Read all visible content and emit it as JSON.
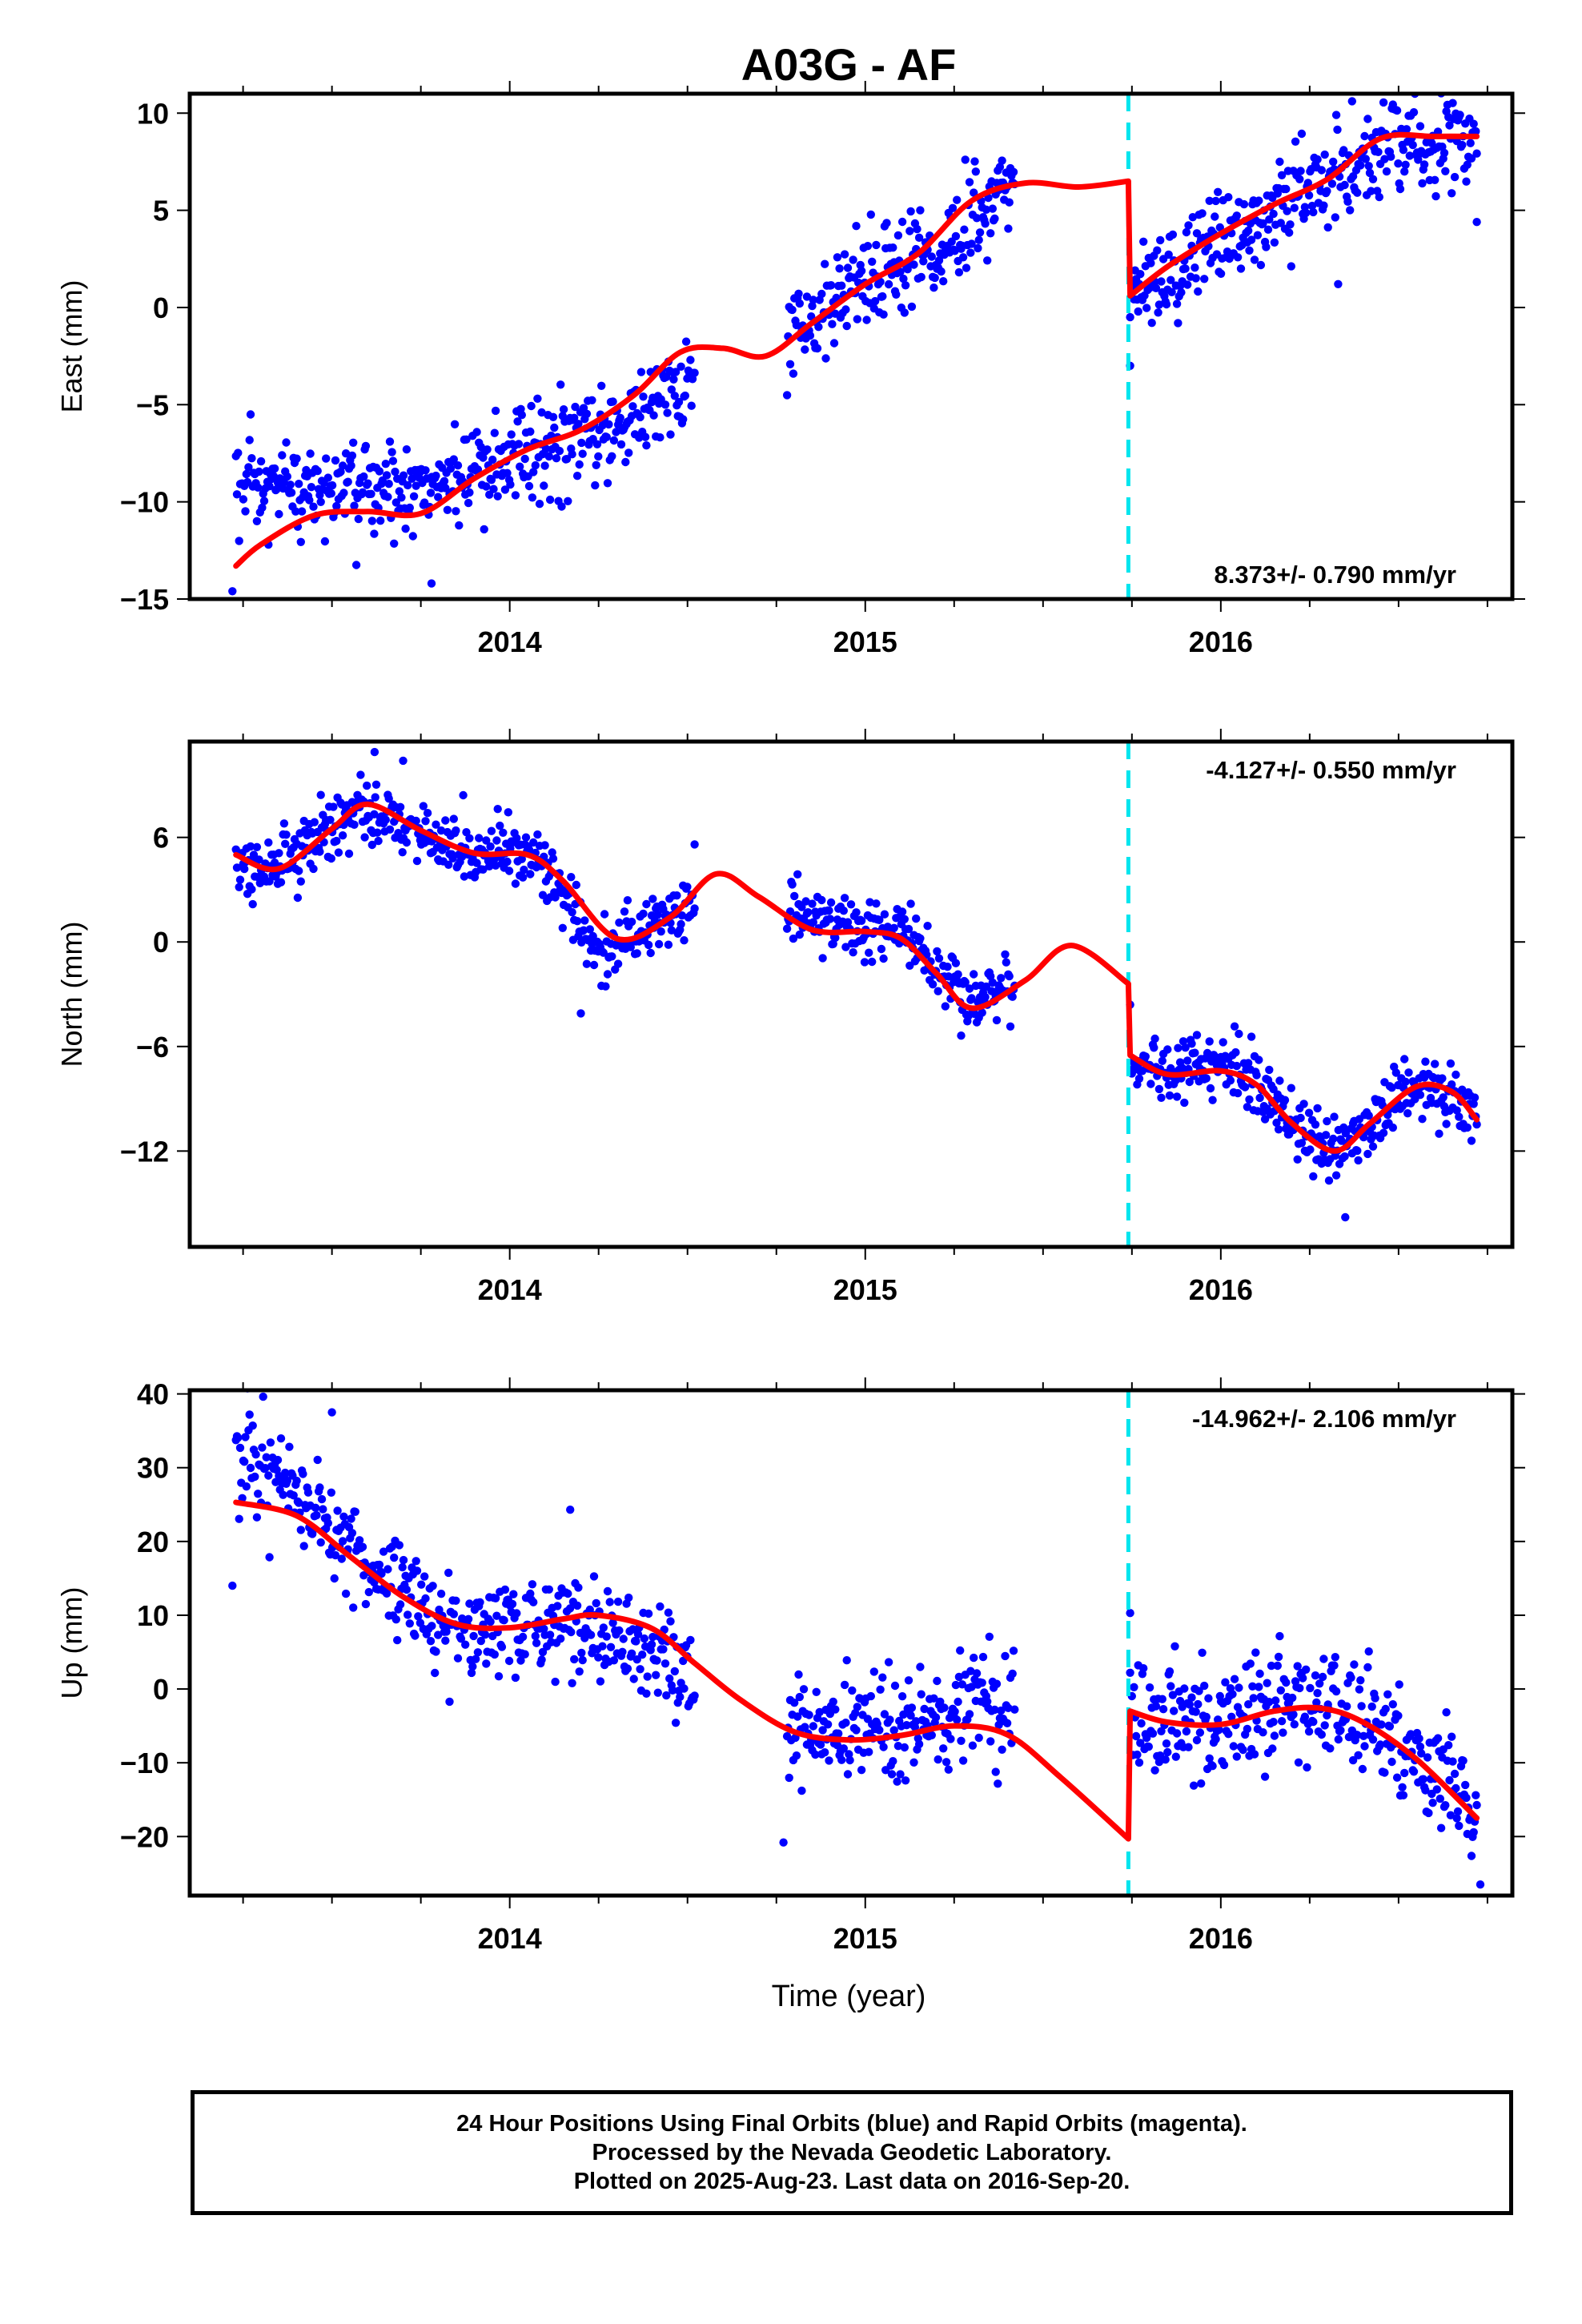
{
  "title": "A03G - AF",
  "xlabel": "Time (year)",
  "footer": {
    "line1": "24 Hour Positions Using Final Orbits (blue) and Rapid Orbits (magenta).",
    "line2": "Processed by the Nevada Geodetic Laboratory.",
    "line3": "Plotted on 2025-Aug-23. Last data on 2016-Sep-20."
  },
  "colors": {
    "data": "#0000ff",
    "model": "#ff0000",
    "offset": "#00e5ee"
  },
  "chart_data": [
    {
      "type": "scatter",
      "ylabel": "East (mm)",
      "rate": "8.373+/- 0.790 mm/yr",
      "xlim": [
        2013.1,
        2016.82
      ],
      "ylim": [
        -15,
        11
      ],
      "yticks": [
        10,
        5,
        0,
        -5,
        -10,
        -15
      ],
      "xticks": [
        2014,
        2015,
        2016
      ],
      "offset_epoch": 2015.74,
      "data_segments": [
        [
          2013.23,
          2014.52
        ],
        [
          2014.78,
          2015.42
        ],
        [
          2015.75,
          2016.72
        ]
      ],
      "model": [
        [
          2013.23,
          -13.3
        ],
        [
          2013.3,
          -12.2
        ],
        [
          2013.45,
          -10.7
        ],
        [
          2013.6,
          -10.5
        ],
        [
          2013.75,
          -10.6
        ],
        [
          2013.9,
          -8.8
        ],
        [
          2014.05,
          -7.3
        ],
        [
          2014.2,
          -6.3
        ],
        [
          2014.35,
          -4.5
        ],
        [
          2014.48,
          -2.3
        ],
        [
          2014.6,
          -2.1
        ],
        [
          2014.72,
          -2.5
        ],
        [
          2014.85,
          -0.8
        ],
        [
          2015.0,
          1.2
        ],
        [
          2015.15,
          2.8
        ],
        [
          2015.3,
          5.5
        ],
        [
          2015.45,
          6.4
        ],
        [
          2015.6,
          6.2
        ],
        [
          2015.74,
          6.5
        ],
        [
          2015.745,
          0.6
        ],
        [
          2015.85,
          2.1
        ],
        [
          2016.0,
          3.8
        ],
        [
          2016.15,
          5.3
        ],
        [
          2016.3,
          6.6
        ],
        [
          2016.45,
          8.7
        ],
        [
          2016.6,
          8.8
        ],
        [
          2016.72,
          8.8
        ]
      ],
      "data_trend": [
        [
          2013.23,
          -9.5
        ],
        [
          2013.6,
          -9.4
        ],
        [
          2013.9,
          -8.7
        ],
        [
          2014.2,
          -6.8
        ],
        [
          2014.52,
          -4.0
        ],
        [
          2014.78,
          -1.5
        ],
        [
          2015.0,
          1.8
        ],
        [
          2015.2,
          2.8
        ],
        [
          2015.42,
          6.0
        ],
        [
          2015.75,
          1.2
        ],
        [
          2016.0,
          3.4
        ],
        [
          2016.3,
          6.6
        ],
        [
          2016.5,
          8.3
        ],
        [
          2016.72,
          8.5
        ]
      ],
      "noise": 1.3,
      "outliers": [
        [
          2015.745,
          -3.0
        ],
        [
          2015.745,
          -0.5
        ],
        [
          2013.22,
          -14.6
        ],
        [
          2013.78,
          -14.2
        ],
        [
          2016.33,
          1.2
        ],
        [
          2016.72,
          4.4
        ]
      ]
    },
    {
      "type": "scatter",
      "ylabel": "North (mm)",
      "rate": "-4.127+/- 0.550 mm/yr",
      "xlim": [
        2013.1,
        2016.82
      ],
      "ylim": [
        -17.5,
        11.5
      ],
      "yticks": [
        6,
        0,
        -6,
        -12
      ],
      "xticks": [
        2014,
        2015,
        2016
      ],
      "offset_epoch": 2015.74,
      "data_segments": [
        [
          2013.23,
          2014.52
        ],
        [
          2014.78,
          2015.42
        ],
        [
          2015.75,
          2016.72
        ]
      ],
      "model": [
        [
          2013.23,
          5.0
        ],
        [
          2013.35,
          4.2
        ],
        [
          2013.5,
          6.5
        ],
        [
          2013.6,
          7.9
        ],
        [
          2013.75,
          6.4
        ],
        [
          2013.9,
          5.1
        ],
        [
          2014.05,
          5.0
        ],
        [
          2014.15,
          3.5
        ],
        [
          2014.3,
          0.2
        ],
        [
          2014.45,
          1.4
        ],
        [
          2014.58,
          3.9
        ],
        [
          2014.7,
          2.6
        ],
        [
          2014.85,
          0.7
        ],
        [
          2015.0,
          0.6
        ],
        [
          2015.1,
          0.2
        ],
        [
          2015.2,
          -1.8
        ],
        [
          2015.3,
          -3.8
        ],
        [
          2015.45,
          -2.2
        ],
        [
          2015.58,
          -0.2
        ],
        [
          2015.74,
          -2.4
        ],
        [
          2015.745,
          -6.5
        ],
        [
          2015.85,
          -7.6
        ],
        [
          2016.0,
          -7.4
        ],
        [
          2016.1,
          -8.2
        ],
        [
          2016.2,
          -10.4
        ],
        [
          2016.32,
          -12.0
        ],
        [
          2016.42,
          -10.4
        ],
        [
          2016.55,
          -8.3
        ],
        [
          2016.65,
          -8.6
        ],
        [
          2016.72,
          -10.2
        ]
      ],
      "data_trend": [
        [
          2013.23,
          4.0
        ],
        [
          2013.35,
          4.2
        ],
        [
          2013.5,
          6.5
        ],
        [
          2013.6,
          7.8
        ],
        [
          2013.75,
          6.3
        ],
        [
          2013.9,
          5.0
        ],
        [
          2014.05,
          5.1
        ],
        [
          2014.15,
          2.8
        ],
        [
          2014.25,
          -0.8
        ],
        [
          2014.38,
          0.8
        ],
        [
          2014.52,
          2.0
        ],
        [
          2014.78,
          1.6
        ],
        [
          2015.0,
          0.8
        ],
        [
          2015.1,
          0.4
        ],
        [
          2015.2,
          -1.5
        ],
        [
          2015.3,
          -3.6
        ],
        [
          2015.42,
          -2.5
        ],
        [
          2015.75,
          -7.4
        ],
        [
          2016.0,
          -6.6
        ],
        [
          2016.1,
          -8.1
        ],
        [
          2016.2,
          -10.6
        ],
        [
          2016.32,
          -12.3
        ],
        [
          2016.42,
          -10.4
        ],
        [
          2016.55,
          -8.0
        ],
        [
          2016.72,
          -9.8
        ]
      ],
      "noise": 0.9,
      "outliers": [
        [
          2013.62,
          10.9
        ],
        [
          2013.7,
          10.4
        ],
        [
          2014.2,
          -4.1
        ],
        [
          2016.35,
          -15.8
        ],
        [
          2015.745,
          -3.6
        ],
        [
          2014.52,
          5.6
        ]
      ]
    },
    {
      "type": "scatter",
      "ylabel": "Up (mm)",
      "rate": "-14.962+/- 2.106 mm/yr",
      "xlim": [
        2013.1,
        2016.82
      ],
      "ylim": [
        -28,
        40.5
      ],
      "yticks": [
        40,
        30,
        20,
        10,
        0,
        -10,
        -20
      ],
      "xticks": [
        2014,
        2015,
        2016
      ],
      "offset_epoch": 2015.74,
      "data_segments": [
        [
          2013.23,
          2014.52
        ],
        [
          2014.78,
          2015.42
        ],
        [
          2015.75,
          2016.72
        ]
      ],
      "model": [
        [
          2013.23,
          25.3
        ],
        [
          2013.4,
          23.5
        ],
        [
          2013.55,
          18.0
        ],
        [
          2013.7,
          12.5
        ],
        [
          2013.85,
          8.8
        ],
        [
          2014.0,
          8.3
        ],
        [
          2014.15,
          9.5
        ],
        [
          2014.25,
          10.0
        ],
        [
          2014.4,
          8.2
        ],
        [
          2014.52,
          3.5
        ],
        [
          2014.65,
          -1.5
        ],
        [
          2014.8,
          -5.8
        ],
        [
          2014.95,
          -6.9
        ],
        [
          2015.1,
          -6.3
        ],
        [
          2015.25,
          -5.0
        ],
        [
          2015.4,
          -6.2
        ],
        [
          2015.55,
          -12.0
        ],
        [
          2015.74,
          -20.3
        ],
        [
          2015.745,
          -3.0
        ],
        [
          2015.85,
          -4.5
        ],
        [
          2016.0,
          -4.8
        ],
        [
          2016.15,
          -3.0
        ],
        [
          2016.28,
          -2.6
        ],
        [
          2016.4,
          -4.5
        ],
        [
          2016.55,
          -9.5
        ],
        [
          2016.72,
          -17.5
        ]
      ],
      "data_trend": [
        [
          2013.23,
          31.0
        ],
        [
          2013.4,
          27.0
        ],
        [
          2013.55,
          19.0
        ],
        [
          2013.7,
          12.0
        ],
        [
          2013.85,
          8.0
        ],
        [
          2014.0,
          9.0
        ],
        [
          2014.15,
          10.0
        ],
        [
          2014.3,
          6.0
        ],
        [
          2014.52,
          2.0
        ],
        [
          2014.78,
          -6.0
        ],
        [
          2015.0,
          -6.0
        ],
        [
          2015.2,
          -4.0
        ],
        [
          2015.42,
          -1.0
        ],
        [
          2015.75,
          -6.0
        ],
        [
          2016.0,
          -4.0
        ],
        [
          2016.2,
          -1.0
        ],
        [
          2016.4,
          -4.0
        ],
        [
          2016.55,
          -10.0
        ],
        [
          2016.72,
          -15.0
        ]
      ],
      "noise": 3.6,
      "outliers": [
        [
          2015.745,
          10.3
        ],
        [
          2015.745,
          2.2
        ],
        [
          2014.17,
          24.3
        ],
        [
          2013.5,
          37.5
        ],
        [
          2014.77,
          -20.8
        ],
        [
          2016.73,
          -26.5
        ],
        [
          2013.22,
          14.0
        ]
      ]
    }
  ]
}
